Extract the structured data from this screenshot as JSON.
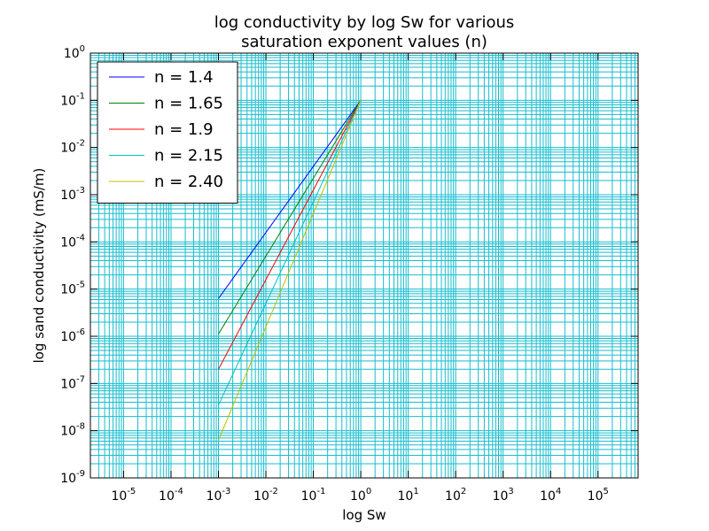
{
  "chart_data": {
    "type": "line",
    "title": "log conductivity by log Sw for various saturation exponent values (n)",
    "title_lines": [
      "log conductivity by log Sw for various",
      "saturation exponent values (n)"
    ],
    "xlabel": "log Sw",
    "ylabel": "log sand conductivity (mS/m)",
    "x_scale": "log",
    "y_scale": "log",
    "xlim": [
      2e-06,
      700000
    ],
    "ylim": [
      1e-09,
      1
    ],
    "grid": true,
    "grid_which": "both",
    "grid_color": "#17becf",
    "legend_position": "top-left",
    "x_ticks": [
      {
        "base": "10",
        "exp": "-5",
        "value": 1e-05
      },
      {
        "base": "10",
        "exp": "-4",
        "value": 0.0001
      },
      {
        "base": "10",
        "exp": "-3",
        "value": 0.001
      },
      {
        "base": "10",
        "exp": "-2",
        "value": 0.01
      },
      {
        "base": "10",
        "exp": "-1",
        "value": 0.1
      },
      {
        "base": "10",
        "exp": "0",
        "value": 1
      },
      {
        "base": "10",
        "exp": "1",
        "value": 10
      },
      {
        "base": "10",
        "exp": "2",
        "value": 100
      },
      {
        "base": "10",
        "exp": "3",
        "value": 1000
      },
      {
        "base": "10",
        "exp": "4",
        "value": 10000
      },
      {
        "base": "10",
        "exp": "5",
        "value": 100000
      }
    ],
    "y_ticks": [
      {
        "base": "10",
        "exp": "-9",
        "value": 1e-09
      },
      {
        "base": "10",
        "exp": "-8",
        "value": 1e-08
      },
      {
        "base": "10",
        "exp": "-7",
        "value": 1e-07
      },
      {
        "base": "10",
        "exp": "-6",
        "value": 1e-06
      },
      {
        "base": "10",
        "exp": "-5",
        "value": 1e-05
      },
      {
        "base": "10",
        "exp": "-4",
        "value": 0.0001
      },
      {
        "base": "10",
        "exp": "-3",
        "value": 0.001
      },
      {
        "base": "10",
        "exp": "-2",
        "value": 0.01
      },
      {
        "base": "10",
        "exp": "-1",
        "value": 0.1
      },
      {
        "base": "10",
        "exp": "0",
        "value": 1
      }
    ],
    "series": [
      {
        "name": "n = 1.4",
        "color": "#0000ff",
        "x": [
          0.001,
          1.0
        ],
        "y": [
          6.3e-06,
          0.1
        ]
      },
      {
        "name": "n = 1.65",
        "color": "#008000",
        "x": [
          0.001,
          1.0
        ],
        "y": [
          1.12e-06,
          0.1
        ]
      },
      {
        "name": "n = 1.9",
        "color": "#ff0000",
        "x": [
          0.001,
          1.0
        ],
        "y": [
          2e-07,
          0.1
        ]
      },
      {
        "name": "n = 2.15",
        "color": "#00bfbf",
        "x": [
          0.001,
          1.0
        ],
        "y": [
          3.5e-08,
          0.1
        ]
      },
      {
        "name": "n = 2.40",
        "color": "#bfbf00",
        "x": [
          0.001,
          1.0
        ],
        "y": [
          6.3e-09,
          0.1
        ]
      }
    ]
  }
}
